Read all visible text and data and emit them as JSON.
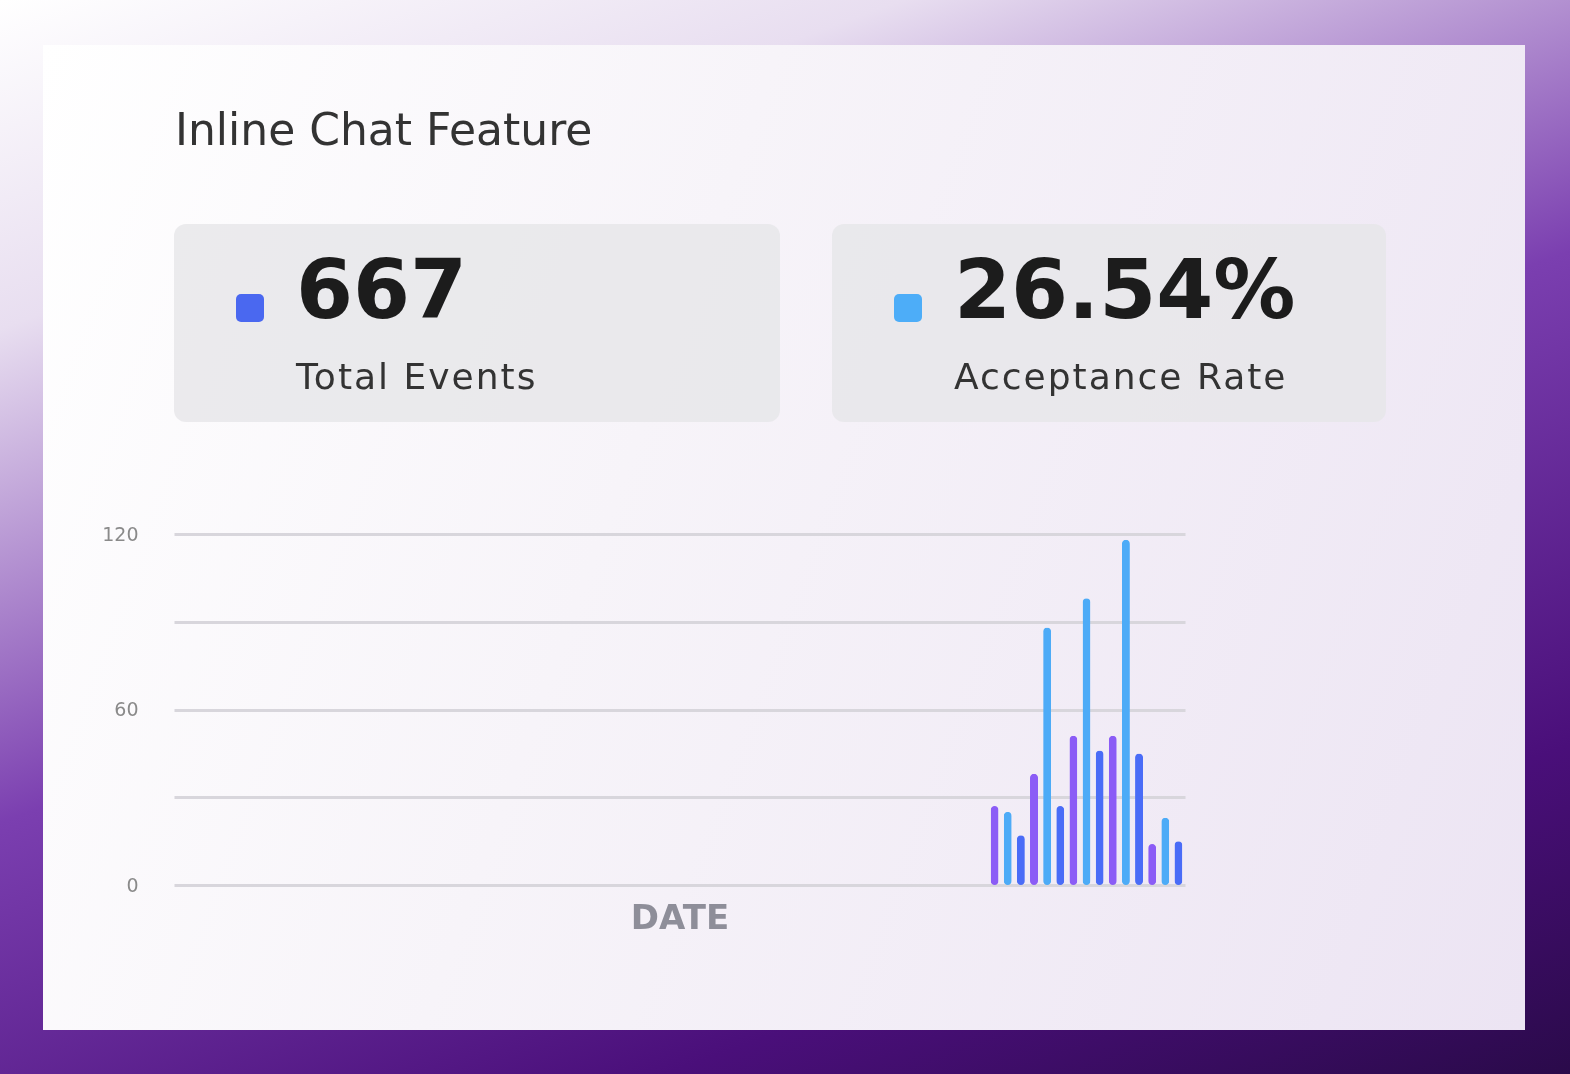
{
  "chart_data": [
    {
      "type": "other",
      "title": "Inline Chat Feature",
      "categories": [
        "Total Events",
        "Acceptance Rate"
      ],
      "values": [
        667,
        26.54
      ],
      "value_labels": [
        "667",
        "26.54%"
      ]
    },
    {
      "type": "bar",
      "xlabel": "DATE",
      "categories": [
        null,
        null,
        null,
        null,
        null,
        null,
        null,
        null,
        null,
        null,
        null,
        null,
        null,
        null,
        null,
        null,
        null,
        null,
        null,
        null,
        null,
        null,
        null,
        null,
        null,
        null,
        null,
        null,
        null,
        null,
        null,
        null,
        null,
        null,
        null,
        null,
        null,
        null,
        null,
        null,
        null,
        null,
        null,
        null,
        null,
        null,
        null,
        null,
        null,
        null,
        null,
        null,
        null,
        null,
        null,
        null,
        null,
        null,
        null,
        null,
        null,
        null,
        null,
        null,
        null,
        null,
        null,
        null,
        null,
        null,
        null,
        null,
        null,
        null,
        null,
        null,
        null
      ],
      "values": [
        null,
        null,
        null,
        null,
        null,
        null,
        null,
        null,
        null,
        null,
        null,
        null,
        null,
        null,
        null,
        null,
        null,
        null,
        null,
        null,
        null,
        null,
        null,
        null,
        null,
        null,
        null,
        null,
        null,
        null,
        null,
        null,
        null,
        null,
        null,
        null,
        null,
        null,
        null,
        null,
        null,
        null,
        null,
        null,
        null,
        null,
        null,
        null,
        null,
        null,
        null,
        null,
        null,
        null,
        null,
        null,
        null,
        null,
        null,
        null,
        null,
        null,
        27,
        25,
        17,
        38,
        88,
        27,
        51,
        98,
        46,
        51,
        118,
        45,
        14,
        23,
        15
      ],
      "colors": [
        "#8b5cf6",
        "#4dabf7",
        "#4a6cf7",
        "#8b5cf6",
        "#4dabf7",
        "#4a6cf7",
        "#8b5cf6",
        "#4dabf7",
        "#4a6cf7",
        "#8b5cf6",
        "#4dabf7",
        "#4a6cf7",
        "#8b5cf6",
        "#4dabf7",
        "#4a6cf7",
        "#8b5cf6",
        "#4dabf7",
        "#4a6cf7",
        "#8b5cf6",
        "#4dabf7",
        "#4a6cf7",
        "#8b5cf6",
        "#4dabf7",
        "#4a6cf7",
        "#8b5cf6",
        "#4dabf7",
        "#4a6cf7",
        "#8b5cf6",
        "#4dabf7",
        "#4a6cf7",
        "#8b5cf6",
        "#4dabf7",
        "#4a6cf7",
        "#8b5cf6",
        "#4dabf7",
        "#4a6cf7",
        "#8b5cf6",
        "#4dabf7",
        "#4a6cf7",
        "#8b5cf6",
        "#4dabf7",
        "#4a6cf7",
        "#8b5cf6",
        "#4dabf7",
        "#4a6cf7",
        "#8b5cf6",
        "#4dabf7",
        "#4a6cf7",
        "#8b5cf6",
        "#4dabf7",
        "#4a6cf7",
        "#8b5cf6",
        "#4dabf7",
        "#4a6cf7",
        "#8b5cf6",
        "#4dabf7",
        "#4a6cf7",
        "#8b5cf6",
        "#4dabf7",
        "#4a6cf7",
        "#8b5cf6",
        "#4dabf7",
        "#8b5cf6",
        "#4dabf7",
        "#4a6cf7",
        "#8b5cf6",
        "#4dabf7",
        "#4a6cf7",
        "#8b5cf6",
        "#4dabf7",
        "#4a6cf7",
        "#8b5cf6",
        "#4dabf7",
        "#4a6cf7",
        "#8b5cf6",
        "#4dabf7",
        "#4a6cf7"
      ],
      "ylim": [
        0,
        120
      ],
      "yticks": [
        0,
        {
          "value": 30,
          "label": null
        },
        60,
        {
          "value": 90,
          "label": null
        },
        120
      ],
      "grid": "y",
      "tick_labels": "y"
    }
  ]
}
